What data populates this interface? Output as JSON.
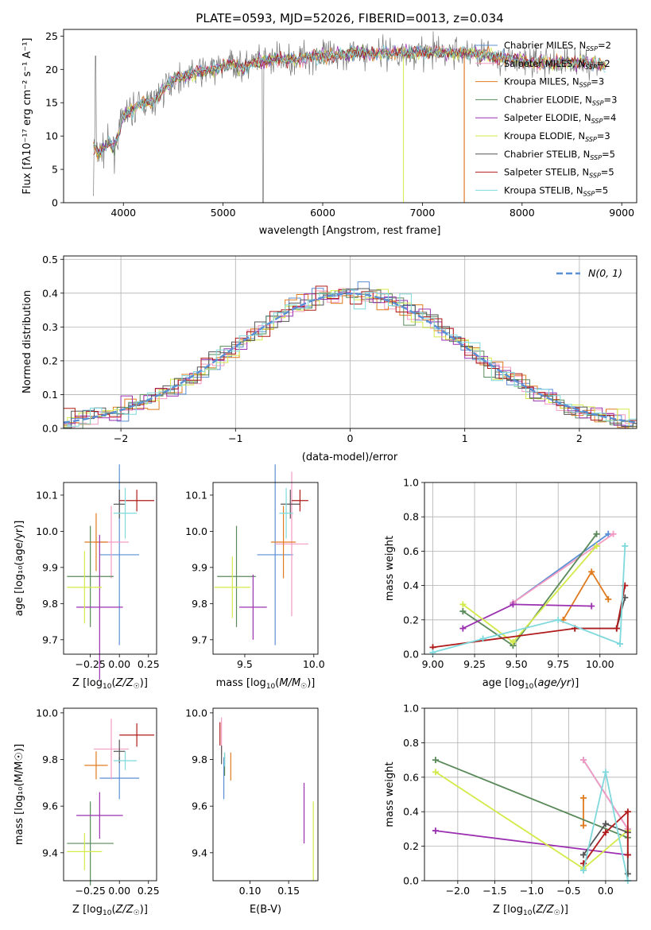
{
  "title": "PLATE=0593, MJD=52026, FIBERID=0013, z=0.034",
  "colors": {
    "series": [
      "#5a8fd6",
      "#f49ac2",
      "#e07b1f",
      "#5a8a5a",
      "#9b30b0",
      "#d4ea4a",
      "#555555",
      "#b01a1a",
      "#7fd9dd"
    ],
    "spectrum_gray": "#7a7a7a",
    "gaussian": "#5a8fd6"
  },
  "legend_spectrum": {
    "entries": [
      {
        "prefix": "Chabrier MILES, N",
        "sub": "SSP",
        "suffix": "=2"
      },
      {
        "prefix": "Salpeter MILES, N",
        "sub": "SSP",
        "suffix": "=2"
      },
      {
        "prefix": "Kroupa MILES, N",
        "sub": "SSP",
        "suffix": "=3"
      },
      {
        "prefix": "Chabrier ELODIE, N",
        "sub": "SSP",
        "suffix": "=3"
      },
      {
        "prefix": "Salpeter ELODIE, N",
        "sub": "SSP",
        "suffix": "=4"
      },
      {
        "prefix": "Kroupa ELODIE, N",
        "sub": "SSP",
        "suffix": "=3"
      },
      {
        "prefix": "Chabrier STELIB, N",
        "sub": "SSP",
        "suffix": "=5"
      },
      {
        "prefix": "Salpeter STELIB, N",
        "sub": "SSP",
        "suffix": "=5"
      },
      {
        "prefix": "Kroupa STELIB, N",
        "sub": "SSP",
        "suffix": "=5"
      }
    ]
  },
  "chart_data": [
    {
      "id": "spectrum",
      "type": "line",
      "title": "PLATE=0593, MJD=52026, FIBERID=0013, z=0.034",
      "xlabel": "wavelength [Angstrom, rest frame]",
      "ylabel": "Flux [fλ10⁻¹⁷ erg cm⁻² s⁻¹ A⁻¹]",
      "xlim": [
        3400,
        9150
      ],
      "ylim": [
        0,
        26
      ],
      "xticks": [
        4000,
        5000,
        6000,
        7000,
        8000,
        9000
      ],
      "yticks": [
        0,
        5,
        10,
        15,
        20,
        25
      ],
      "continuum": [
        [
          3700,
          8.5
        ],
        [
          3750,
          7.5
        ],
        [
          3800,
          8
        ],
        [
          3850,
          9
        ],
        [
          3900,
          8
        ],
        [
          3950,
          10
        ],
        [
          4000,
          13
        ],
        [
          4100,
          14
        ],
        [
          4200,
          15
        ],
        [
          4300,
          15
        ],
        [
          4400,
          17
        ],
        [
          4500,
          18.5
        ],
        [
          4700,
          19.5
        ],
        [
          4900,
          20
        ],
        [
          5100,
          21
        ],
        [
          5200,
          20
        ],
        [
          5300,
          21
        ],
        [
          5500,
          21.5
        ],
        [
          5700,
          21.5
        ],
        [
          5900,
          22
        ],
        [
          6100,
          22
        ],
        [
          6300,
          22.5
        ],
        [
          6500,
          22.5
        ],
        [
          6700,
          22.5
        ],
        [
          6900,
          22.5
        ],
        [
          7100,
          22.5
        ],
        [
          7300,
          22.5
        ],
        [
          7500,
          22.5
        ],
        [
          7700,
          22
        ],
        [
          7900,
          21.5
        ],
        [
          8100,
          21
        ],
        [
          8300,
          21
        ],
        [
          8500,
          21
        ],
        [
          8700,
          21
        ],
        [
          8850,
          20.5
        ]
      ],
      "grid": false
    },
    {
      "id": "residuals",
      "type": "histogram",
      "xlabel": "(data-model)/error",
      "ylabel": "Normed distribution",
      "xlim": [
        -2.5,
        2.5
      ],
      "ylim": [
        0,
        0.51
      ],
      "xticks": [
        -2,
        -1,
        0,
        1,
        2
      ],
      "yticks": [
        0.0,
        0.1,
        0.2,
        0.3,
        0.4,
        0.5
      ],
      "legend": "N(0, 1)",
      "grid": true
    },
    {
      "id": "age-vs-Z",
      "type": "errorbar",
      "xlabel": "Z [log10(Z/Z☉)]",
      "ylabel": "age [log10(age/yr)]",
      "xlim": [
        -0.48,
        0.32
      ],
      "ylim": [
        9.66,
        10.135
      ],
      "xticks": [
        -0.25,
        0.0,
        0.25
      ],
      "yticks": [
        9.7,
        9.8,
        9.9,
        10.0,
        10.1
      ],
      "points": [
        {
          "x": 0.0,
          "y": 9.935,
          "xerr": 0.17,
          "yerr": 0.25
        },
        {
          "x": -0.07,
          "y": 9.97,
          "xerr": 0.15,
          "yerr": 0.1
        },
        {
          "x": -0.2,
          "y": 9.97,
          "xerr": 0.1,
          "yerr": 0.08
        },
        {
          "x": -0.25,
          "y": 9.875,
          "xerr": 0.2,
          "yerr": 0.14
        },
        {
          "x": -0.17,
          "y": 9.79,
          "xerr": 0.2,
          "yerr": 0.2
        },
        {
          "x": -0.3,
          "y": 9.845,
          "xerr": 0.15,
          "yerr": 0.1
        },
        {
          "x": 0.0,
          "y": 10.075,
          "xerr": 0.05,
          "yerr": 0.04
        },
        {
          "x": 0.15,
          "y": 10.085,
          "xerr": 0.15,
          "yerr": 0.03
        },
        {
          "x": 0.05,
          "y": 10.05,
          "xerr": 0.1,
          "yerr": 0.07
        }
      ]
    },
    {
      "id": "age-vs-mass",
      "type": "errorbar",
      "xlabel": "mass [log10(M/M☉)]",
      "ylabel": "",
      "xlim": [
        9.27,
        10.03
      ],
      "ylim": [
        9.66,
        10.135
      ],
      "xticks": [
        9.5,
        10.0
      ],
      "yticks": [
        9.7,
        9.8,
        9.9,
        10.0,
        10.1
      ],
      "points": [
        {
          "x": 9.72,
          "y": 9.935,
          "xerr": 0.13,
          "yerr": 0.25
        },
        {
          "x": 9.84,
          "y": 9.965,
          "xerr": 0.12,
          "yerr": 0.2
        },
        {
          "x": 9.78,
          "y": 9.97,
          "xerr": 0.09,
          "yerr": 0.1
        },
        {
          "x": 9.44,
          "y": 9.875,
          "xerr": 0.14,
          "yerr": 0.14
        },
        {
          "x": 9.56,
          "y": 9.79,
          "xerr": 0.1,
          "yerr": 0.09
        },
        {
          "x": 9.41,
          "y": 9.845,
          "xerr": 0.13,
          "yerr": 0.085
        },
        {
          "x": 9.83,
          "y": 10.075,
          "xerr": 0.07,
          "yerr": 0.04
        },
        {
          "x": 9.9,
          "y": 10.085,
          "xerr": 0.06,
          "yerr": 0.03
        },
        {
          "x": 9.8,
          "y": 10.05,
          "xerr": 0.05,
          "yerr": 0.07
        }
      ]
    },
    {
      "id": "weight-vs-age",
      "type": "line",
      "xlabel": "age [log10(age/yr)]",
      "ylabel": "mass weight",
      "xlim": [
        8.95,
        10.22
      ],
      "ylim": [
        0.0,
        1.0
      ],
      "xticks": [
        9.0,
        9.25,
        9.5,
        9.75,
        10.0
      ],
      "yticks": [
        0.0,
        0.2,
        0.4,
        0.6,
        0.8,
        1.0
      ],
      "grid": true,
      "series": [
        {
          "x": [
            9.48,
            10.05
          ],
          "y": [
            0.3,
            0.7
          ]
        },
        {
          "x": [
            9.48,
            10.08
          ],
          "y": [
            0.3,
            0.7
          ]
        },
        {
          "x": [
            9.78,
            9.95,
            10.05
          ],
          "y": [
            0.2,
            0.48,
            0.32
          ]
        },
        {
          "x": [
            9.18,
            9.48,
            9.98
          ],
          "y": [
            0.25,
            0.05,
            0.7
          ]
        },
        {
          "x": [
            9.18,
            9.48,
            9.95
          ],
          "y": [
            0.15,
            0.29,
            0.28
          ]
        },
        {
          "x": [
            9.18,
            9.48,
            9.98
          ],
          "y": [
            0.29,
            0.07,
            0.63
          ]
        },
        {
          "x": [
            9.85,
            10.1,
            10.15
          ],
          "y": [
            0.15,
            0.15,
            0.33
          ]
        },
        {
          "x": [
            9.0,
            9.85,
            10.1,
            10.15
          ],
          "y": [
            0.04,
            0.15,
            0.15,
            0.4
          ]
        },
        {
          "x": [
            9.0,
            9.3,
            9.75,
            10.12,
            10.15
          ],
          "y": [
            0.01,
            0.09,
            0.2,
            0.06,
            0.63
          ]
        }
      ]
    },
    {
      "id": "mass-vs-Z",
      "type": "errorbar",
      "xlabel": "Z [log10(Z/Z☉)]",
      "ylabel": "mass [log10(M/M☉)]",
      "xlim": [
        -0.48,
        0.32
      ],
      "ylim": [
        9.28,
        10.02
      ],
      "xticks": [
        -0.25,
        0.0,
        0.25
      ],
      "yticks": [
        9.4,
        9.6,
        9.8,
        10.0
      ],
      "points": [
        {
          "x": 0.0,
          "y": 9.72,
          "xerr": 0.17,
          "yerr": 0.09
        },
        {
          "x": -0.07,
          "y": 9.845,
          "xerr": 0.15,
          "yerr": 0.13
        },
        {
          "x": -0.2,
          "y": 9.775,
          "xerr": 0.1,
          "yerr": 0.06
        },
        {
          "x": -0.25,
          "y": 9.44,
          "xerr": 0.2,
          "yerr": 0.18
        },
        {
          "x": -0.17,
          "y": 9.56,
          "xerr": 0.2,
          "yerr": 0.1
        },
        {
          "x": -0.3,
          "y": 9.405,
          "xerr": 0.15,
          "yerr": 0.08
        },
        {
          "x": 0.0,
          "y": 9.835,
          "xerr": 0.05,
          "yerr": 0.05
        },
        {
          "x": 0.15,
          "y": 9.905,
          "xerr": 0.15,
          "yerr": 0.05
        },
        {
          "x": 0.05,
          "y": 9.795,
          "xerr": 0.1,
          "yerr": 0.04
        }
      ]
    },
    {
      "id": "mass-vs-EBV",
      "type": "errorbar",
      "xlabel": "E(B-V)",
      "ylabel": "",
      "xlim": [
        0.052,
        0.188
      ],
      "ylim": [
        9.28,
        10.02
      ],
      "xticks": [
        0.1,
        0.15
      ],
      "yticks": [
        9.4,
        9.6,
        9.8,
        10.0
      ],
      "points": [
        {
          "x": 0.066,
          "y": 9.72,
          "xerr": 0,
          "yerr": 0.09
        },
        {
          "x": 0.063,
          "y": 9.9,
          "xerr": 0,
          "yerr": 0.08
        },
        {
          "x": 0.075,
          "y": 9.77,
          "xerr": 0,
          "yerr": 0.06
        },
        {
          "x": 0.067,
          "y": 9.78,
          "xerr": 0,
          "yerr": 0.05
        },
        {
          "x": 0.17,
          "y": 9.57,
          "xerr": 0,
          "yerr": 0.13
        },
        {
          "x": 0.182,
          "y": 9.45,
          "xerr": 0,
          "yerr": 0.17
        },
        {
          "x": 0.063,
          "y": 9.82,
          "xerr": 0,
          "yerr": 0.04
        },
        {
          "x": 0.061,
          "y": 9.91,
          "xerr": 0,
          "yerr": 0.05
        },
        {
          "x": 0.067,
          "y": 9.8,
          "xerr": 0,
          "yerr": 0.03
        }
      ]
    },
    {
      "id": "weight-vs-Z",
      "type": "line",
      "xlabel": "Z [log10(Z/Z☉)]",
      "ylabel": "mass weight",
      "xlim": [
        -2.45,
        0.42
      ],
      "ylim": [
        0.0,
        1.0
      ],
      "xticks": [
        -2.0,
        -1.5,
        -1.0,
        -0.5,
        0.0
      ],
      "yticks": [
        0.0,
        0.2,
        0.4,
        0.6,
        0.8,
        1.0
      ],
      "grid": true,
      "series": [
        {
          "x": [
            -0.3,
            0.3
          ],
          "y": [
            0.7,
            0.3
          ]
        },
        {
          "x": [
            -0.3,
            0.3
          ],
          "y": [
            0.7,
            0.3
          ]
        },
        {
          "x": [
            -0.3,
            -0.3
          ],
          "y": [
            0.48,
            0.32
          ]
        },
        {
          "x": [
            -2.3,
            0.3
          ],
          "y": [
            0.7,
            0.25
          ]
        },
        {
          "x": [
            -2.3,
            0.3
          ],
          "y": [
            0.29,
            0.15
          ]
        },
        {
          "x": [
            -2.3,
            -0.3,
            0.3
          ],
          "y": [
            0.63,
            0.07,
            0.29
          ]
        },
        {
          "x": [
            -0.3,
            0.0,
            0.3,
            0.3
          ],
          "y": [
            0.15,
            0.33,
            0.28,
            0.04
          ]
        },
        {
          "x": [
            -0.3,
            0.0,
            0.3,
            0.3
          ],
          "y": [
            0.1,
            0.28,
            0.4,
            0.15
          ]
        },
        {
          "x": [
            -0.3,
            0.0,
            0.3
          ],
          "y": [
            0.06,
            0.63,
            0.0
          ]
        }
      ]
    }
  ]
}
